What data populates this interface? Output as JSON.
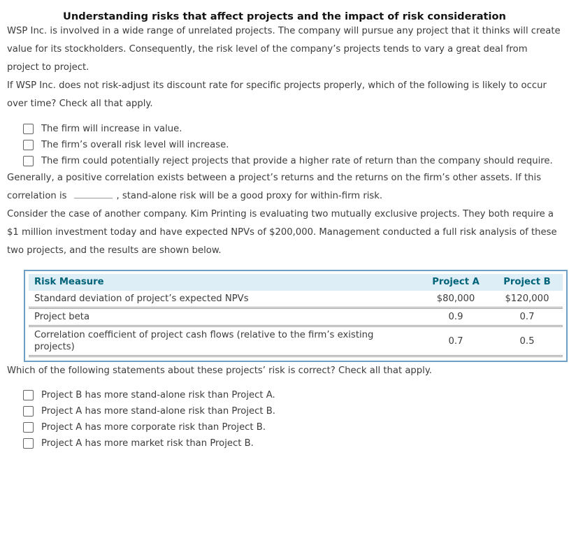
{
  "title": "Understanding risks that affect projects and the impact of risk consideration",
  "intro": "WSP Inc. is involved in a wide range of unrelated projects. The company will pursue any project that it thinks will create value for its stockholders. Consequently, the risk level of the company’s projects tends to vary a great deal from project to project.",
  "question1": {
    "prompt": "If WSP Inc. does not risk-adjust its discount rate for specific projects properly, which of the following is likely to occur over time? Check all that apply.",
    "options": [
      "The firm will increase in value.",
      "The firm’s overall risk level will increase.",
      "The firm could potentially reject projects that provide a higher rate of return than the company should require."
    ]
  },
  "fill_blank": {
    "text_before": "Generally, a positive correlation exists between a project’s returns and the returns on the firm’s other assets. If this correlation is",
    "text_after": ", stand-alone risk will be a good proxy for within-firm risk."
  },
  "case_intro": "Consider the case of another company. Kim Printing is evaluating two mutually exclusive projects. They both require a $1 million investment today and have expected NPVs of $200,000. Management conducted a full risk analysis of these two projects, and the results are shown below.",
  "table": {
    "headers": [
      "Risk Measure",
      "Project A",
      "Project B"
    ],
    "rows": [
      {
        "measure": "Standard deviation of project’s expected NPVs",
        "project_a": "$80,000",
        "project_b": "$120,000"
      },
      {
        "measure": "Project beta",
        "project_a": "0.9",
        "project_b": "0.7"
      },
      {
        "measure": "Correlation coefficient of project cash flows (relative to the firm’s existing projects)",
        "project_a": "0.7",
        "project_b": "0.5"
      }
    ]
  },
  "question2": {
    "prompt": "Which of the following statements about these projects’ risk is correct? Check all that apply.",
    "options": [
      "Project B has more stand-alone risk than Project A.",
      "Project A has more stand-alone risk than Project B.",
      "Project A has more corporate risk than Project B.",
      "Project A has more market risk than Project B."
    ]
  },
  "colors": {
    "table_header_bg": "#ddeef6",
    "table_header_text": "#006379",
    "table_border": "#6f9fc4",
    "body_text": "#3c3c3c"
  }
}
